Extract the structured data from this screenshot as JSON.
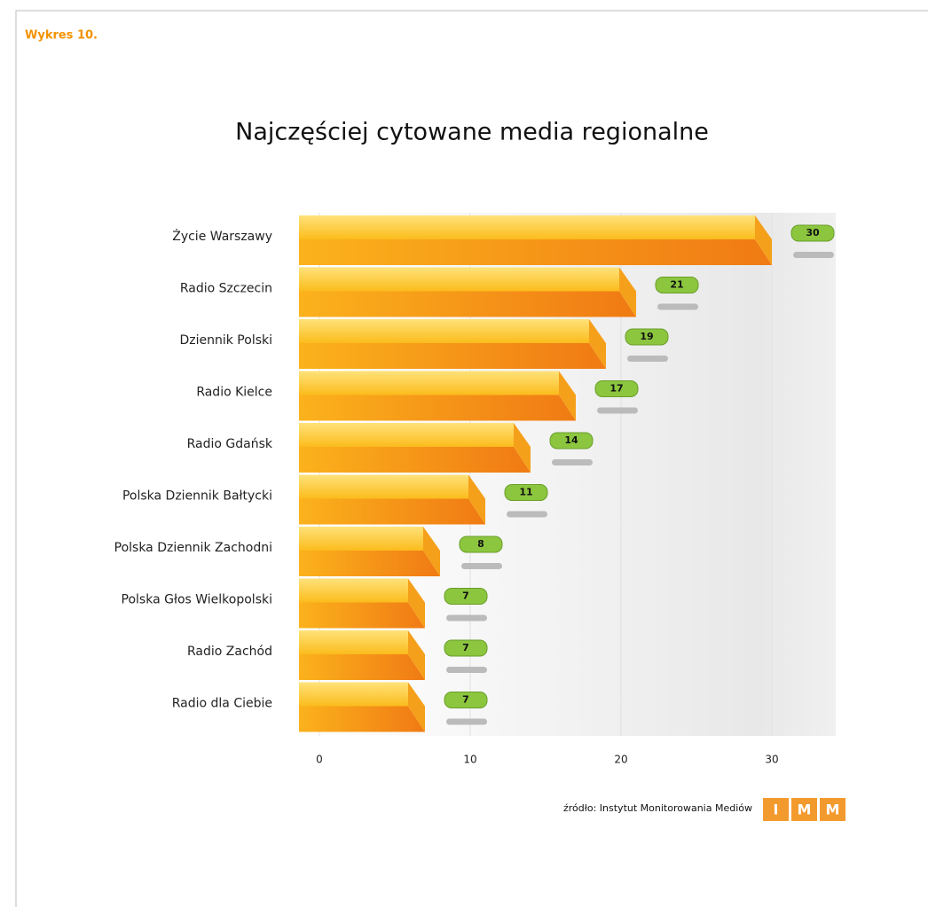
{
  "header": "Wykres 10.",
  "chart_data": {
    "type": "bar3d",
    "title": "Najczęściej cytowane media regionalne",
    "categories": [
      "Życie Warszawy",
      "Radio Szczecin",
      "Dziennik Polski",
      "Radio Kielce",
      "Radio Gdańsk",
      "Polska Dziennik Bałtycki",
      "Polska Dziennik Zachodni",
      "Polska Głos Wielkopolski",
      "Radio Zachód",
      "Radio dla Ciebie"
    ],
    "values": [
      30,
      21,
      19,
      17,
      14,
      11,
      8,
      7,
      7,
      7
    ],
    "xlim": [
      0,
      34
    ],
    "xticks": [
      0,
      10,
      20,
      30
    ],
    "color": "#f7a21b",
    "label_color": "#8cc63f"
  },
  "source": "źródło: Instytut Monitorowania Mediów",
  "logo": [
    "I",
    "M",
    "M"
  ]
}
